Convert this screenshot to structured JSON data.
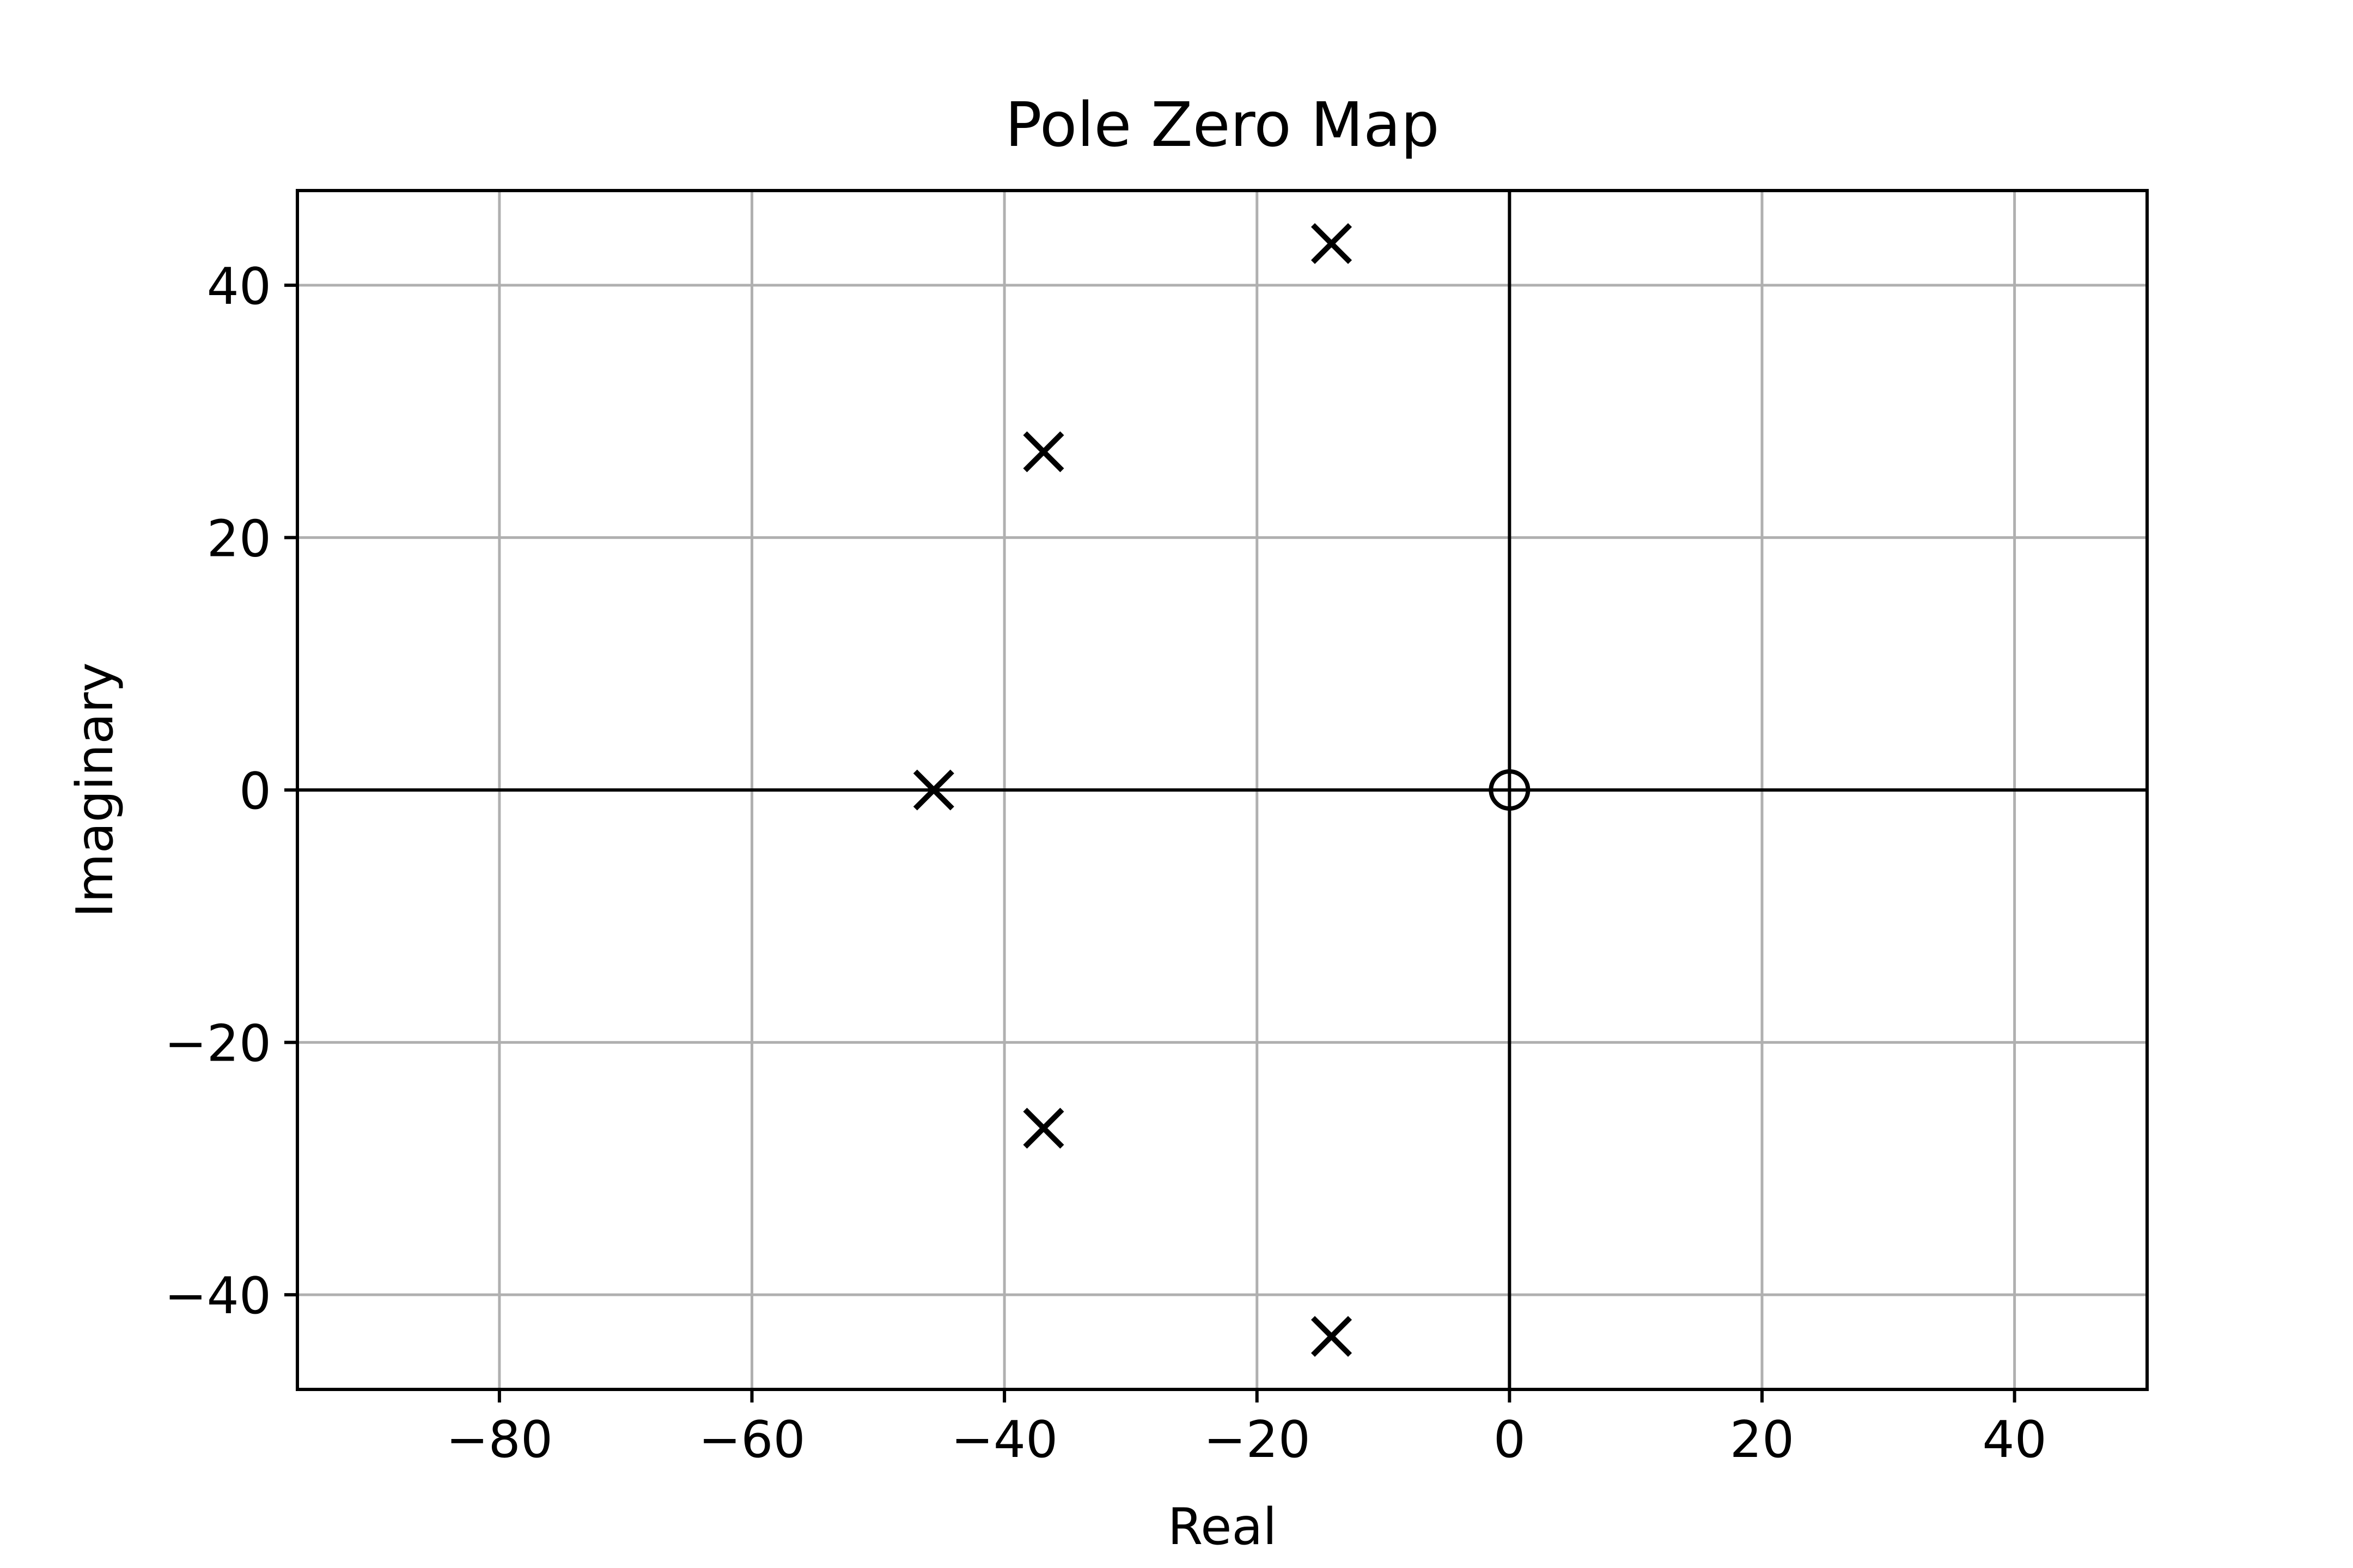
{
  "chart_data": {
    "type": "scatter",
    "title": "Pole Zero Map",
    "xlabel": "Real",
    "ylabel": "Imaginary",
    "xlim": [
      -96,
      50.5
    ],
    "ylim": [
      -47.5,
      47.5
    ],
    "xticks": [
      -80,
      -60,
      -40,
      -20,
      0,
      20,
      40
    ],
    "yticks": [
      -40,
      -20,
      0,
      20,
      40
    ],
    "grid": true,
    "reference_lines": {
      "x": 0,
      "y": 0
    },
    "series": [
      {
        "marker": "x",
        "points": [
          {
            "x": -14.1,
            "y": 43.3
          },
          {
            "x": -14.1,
            "y": -43.3
          },
          {
            "x": -36.9,
            "y": 26.8
          },
          {
            "x": -36.9,
            "y": -26.8
          },
          {
            "x": -45.6,
            "y": 0
          }
        ]
      },
      {
        "marker": "o",
        "points": [
          {
            "x": 0,
            "y": 0
          }
        ]
      }
    ]
  }
}
